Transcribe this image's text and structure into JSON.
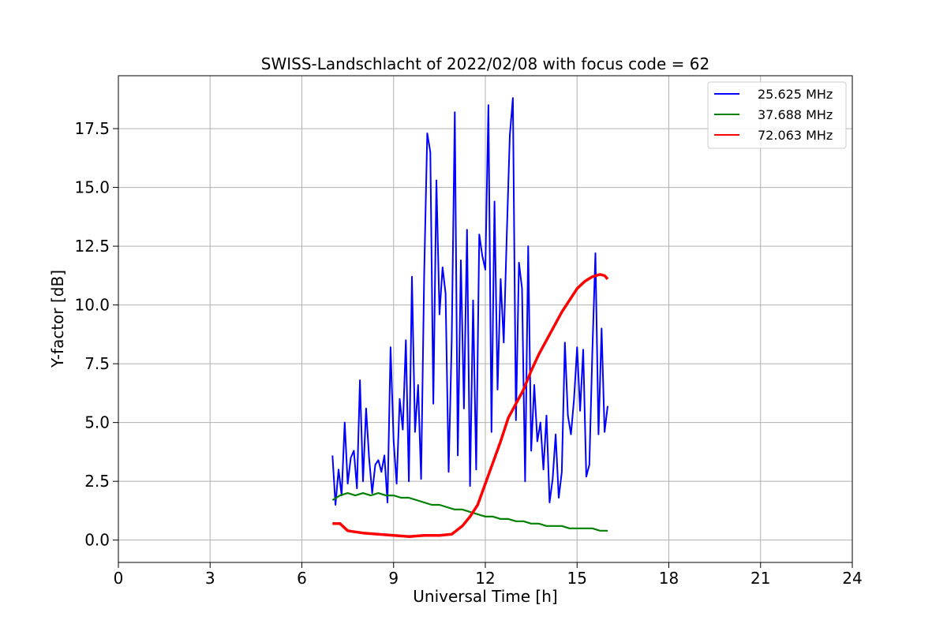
{
  "chart_data": {
    "type": "line",
    "title": "SWISS-Landschlacht of 2022/02/08 with focus code = 62",
    "xlabel": "Universal Time [h]",
    "ylabel": "Y-factor [dB]",
    "xlim": [
      0,
      24
    ],
    "ylim": [
      -0.95,
      19.75
    ],
    "xticks": [
      0,
      3,
      6,
      9,
      12,
      15,
      18,
      21,
      24
    ],
    "xtick_labels": [
      "0",
      "3",
      "6",
      "9",
      "12",
      "15",
      "18",
      "21",
      "24"
    ],
    "yticks": [
      0,
      2.5,
      5,
      7.5,
      10,
      12.5,
      15,
      17.5
    ],
    "ytick_labels": [
      "0.0",
      "2.5",
      "5.0",
      "7.5",
      "10.0",
      "12.5",
      "15.0",
      "17.5"
    ],
    "grid": true,
    "legend_position": "top-right",
    "series": [
      {
        "name": "25.625 MHz",
        "color": "#0000ff",
        "x": [
          7.0,
          7.1,
          7.2,
          7.3,
          7.4,
          7.5,
          7.6,
          7.7,
          7.8,
          7.9,
          8.0,
          8.1,
          8.2,
          8.3,
          8.4,
          8.5,
          8.6,
          8.7,
          8.8,
          8.9,
          9.0,
          9.1,
          9.2,
          9.3,
          9.4,
          9.5,
          9.6,
          9.7,
          9.8,
          9.9,
          10.0,
          10.1,
          10.2,
          10.3,
          10.4,
          10.5,
          10.6,
          10.7,
          10.8,
          10.9,
          11.0,
          11.1,
          11.2,
          11.3,
          11.4,
          11.5,
          11.6,
          11.7,
          11.8,
          11.9,
          12.0,
          12.1,
          12.2,
          12.3,
          12.4,
          12.5,
          12.6,
          12.7,
          12.8,
          12.9,
          13.0,
          13.1,
          13.2,
          13.3,
          13.4,
          13.5,
          13.6,
          13.7,
          13.8,
          13.9,
          14.0,
          14.1,
          14.2,
          14.3,
          14.4,
          14.5,
          14.6,
          14.7,
          14.8,
          14.9,
          15.0,
          15.1,
          15.2,
          15.3,
          15.4,
          15.5,
          15.6,
          15.7,
          15.8,
          15.9,
          16.0
        ],
        "y": [
          3.6,
          1.5,
          3.0,
          1.9,
          5.0,
          2.4,
          3.5,
          3.8,
          2.2,
          6.8,
          2.5,
          5.6,
          3.5,
          2.0,
          3.2,
          3.4,
          2.9,
          3.6,
          1.6,
          8.2,
          4.2,
          2.4,
          6.0,
          4.7,
          8.5,
          2.5,
          11.2,
          4.6,
          6.6,
          2.6,
          11.3,
          17.3,
          16.5,
          5.8,
          15.3,
          9.6,
          11.6,
          10.5,
          2.9,
          8.5,
          18.2,
          3.6,
          11.9,
          5.6,
          13.2,
          2.3,
          10.2,
          3.0,
          13.0,
          12.1,
          11.5,
          18.5,
          4.6,
          14.4,
          6.4,
          11.1,
          8.4,
          12.9,
          17.2,
          18.8,
          5.1,
          11.8,
          10.7,
          2.5,
          12.5,
          3.8,
          6.6,
          4.2,
          5.0,
          3.0,
          5.3,
          1.6,
          2.6,
          4.5,
          1.8,
          2.9,
          8.4,
          5.3,
          4.5,
          6.0,
          8.2,
          5.5,
          8.1,
          2.7,
          3.2,
          8.0,
          12.2,
          4.5,
          9.0,
          4.6,
          5.7
        ]
      },
      {
        "name": "37.688 MHz",
        "color": "#008000",
        "x": [
          7.0,
          7.25,
          7.5,
          7.75,
          8.0,
          8.25,
          8.5,
          8.75,
          9.0,
          9.25,
          9.5,
          9.75,
          10.0,
          10.25,
          10.5,
          10.75,
          11.0,
          11.25,
          11.5,
          11.75,
          12.0,
          12.25,
          12.5,
          12.75,
          13.0,
          13.25,
          13.5,
          13.75,
          14.0,
          14.25,
          14.5,
          14.75,
          15.0,
          15.25,
          15.5,
          15.75,
          16.0
        ],
        "y": [
          1.7,
          1.9,
          2.0,
          1.9,
          2.0,
          1.9,
          2.0,
          1.9,
          1.9,
          1.8,
          1.8,
          1.7,
          1.6,
          1.5,
          1.5,
          1.4,
          1.3,
          1.3,
          1.2,
          1.1,
          1.0,
          1.0,
          0.9,
          0.9,
          0.8,
          0.8,
          0.7,
          0.7,
          0.6,
          0.6,
          0.6,
          0.5,
          0.5,
          0.5,
          0.5,
          0.4,
          0.4
        ]
      },
      {
        "name": "72.063 MHz",
        "color": "#ff0000",
        "x": [
          7.0,
          7.25,
          7.5,
          7.75,
          8.0,
          8.5,
          9.0,
          9.5,
          10.0,
          10.5,
          10.9,
          11.25,
          11.5,
          11.75,
          12.0,
          12.25,
          12.5,
          12.75,
          13.0,
          13.25,
          13.5,
          13.75,
          14.0,
          14.25,
          14.5,
          14.75,
          15.0,
          15.25,
          15.5,
          15.75,
          15.9,
          16.0
        ],
        "y": [
          0.7,
          0.7,
          0.4,
          0.35,
          0.3,
          0.25,
          0.2,
          0.15,
          0.2,
          0.2,
          0.25,
          0.6,
          1.0,
          1.5,
          2.4,
          3.3,
          4.2,
          5.2,
          5.8,
          6.4,
          7.2,
          7.9,
          8.5,
          9.1,
          9.7,
          10.2,
          10.7,
          11.0,
          11.2,
          11.3,
          11.25,
          11.1
        ]
      }
    ]
  }
}
